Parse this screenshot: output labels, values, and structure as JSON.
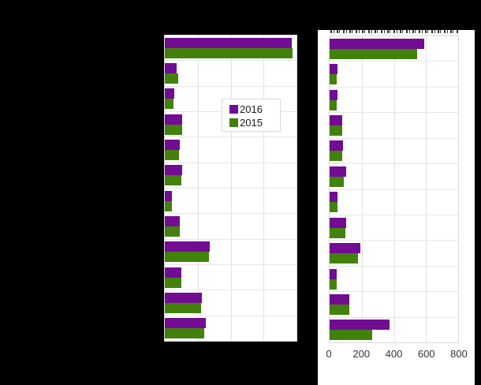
{
  "window": {
    "background": "#000000"
  },
  "colors": {
    "series_2016": "#710c93",
    "series_2015": "#42810b",
    "gridline": "#e2e2e2",
    "plot_border": "#d9d9d9",
    "axis_text": "#333333",
    "panel_bg": "#ffffff"
  },
  "legend": {
    "items": [
      {
        "label": "2016",
        "color": "#710c93"
      },
      {
        "label": "2015",
        "color": "#42810b"
      }
    ]
  },
  "chart_data": [
    {
      "type": "bar",
      "orientation": "horizontal",
      "panel": "left",
      "title": "",
      "n_categories": 12,
      "categories_visible": false,
      "axis_labels_visible": false,
      "xlim": [
        0,
        800
      ],
      "grid": true,
      "series": [
        {
          "name": "2016",
          "values": [
            770,
            73,
            58,
            107,
            92,
            107,
            44,
            92,
            271,
            102,
            223,
            247
          ]
        },
        {
          "name": "2015",
          "values": [
            775,
            82,
            53,
            107,
            87,
            102,
            44,
            91,
            266,
            102,
            221,
            241
          ]
        }
      ]
    },
    {
      "type": "bar",
      "orientation": "horizontal",
      "panel": "right",
      "title": "",
      "n_categories": 12,
      "categories_visible": false,
      "axis_labels_visible": true,
      "xlim": [
        0,
        800
      ],
      "xticks": [
        0,
        200,
        400,
        600,
        800
      ],
      "grid": true,
      "series": [
        {
          "name": "2016",
          "values": [
            590,
            48,
            51,
            77,
            85,
            103,
            48,
            105,
            193,
            42,
            123,
            373
          ]
        },
        {
          "name": "2015",
          "values": [
            545,
            43,
            45,
            77,
            80,
            90,
            51,
            100,
            178,
            43,
            124,
            267
          ]
        }
      ]
    }
  ]
}
